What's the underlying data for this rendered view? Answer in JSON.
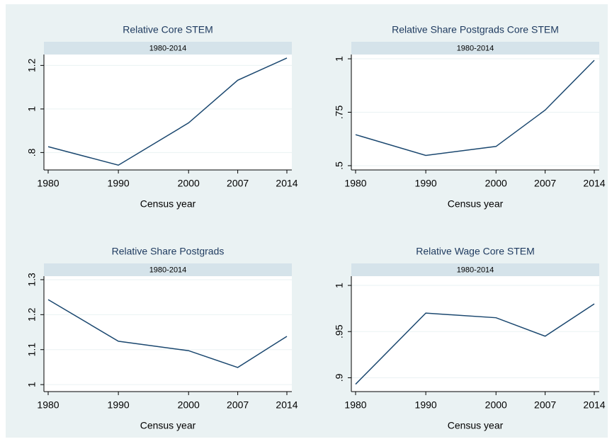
{
  "chart_data": [
    {
      "type": "line",
      "title": "Relative Core STEM",
      "subtitle": "1980-2014",
      "xlabel": "Census year",
      "x": [
        1980,
        1990,
        2000,
        2007,
        2014
      ],
      "values": [
        0.827,
        0.742,
        0.936,
        1.132,
        1.234
      ],
      "color": "#1a476f",
      "xlim": [
        1980,
        2014
      ],
      "xticks": [
        1980,
        1990,
        2000,
        2007,
        2014
      ],
      "ylim": [
        0.72,
        1.25
      ],
      "yticks": [
        {
          "value": 0.8,
          "label": ".8"
        },
        1,
        1.2
      ],
      "grid": true
    },
    {
      "type": "line",
      "title": "Relative Share Postgrads Core STEM",
      "subtitle": "1980-2014",
      "xlabel": "Census year",
      "x": [
        1980,
        1990,
        2000,
        2007,
        2014
      ],
      "values": [
        0.645,
        0.548,
        0.59,
        0.76,
        0.993
      ],
      "color": "#1a476f",
      "xlim": [
        1980,
        2014
      ],
      "xticks": [
        1980,
        1990,
        2000,
        2007,
        2014
      ],
      "ylim": [
        0.48,
        1.02
      ],
      "yticks": [
        {
          "value": 0.5,
          "label": ".5"
        },
        {
          "value": 0.75,
          "label": ".75"
        },
        1
      ],
      "grid": true
    },
    {
      "type": "line",
      "title": "Relative Share Postgrads",
      "subtitle": "1980-2014",
      "xlabel": "Census year",
      "x": [
        1980,
        1990,
        2000,
        2007,
        2014
      ],
      "values": [
        1.243,
        1.124,
        1.097,
        1.049,
        1.138
      ],
      "color": "#1a476f",
      "xlim": [
        1980,
        2014
      ],
      "xticks": [
        1980,
        1990,
        2000,
        2007,
        2014
      ],
      "ylim": [
        0.98,
        1.31
      ],
      "yticks": [
        1,
        1.1,
        1.2,
        1.3
      ],
      "grid": true
    },
    {
      "type": "line",
      "title": "Relative Wage Core STEM",
      "subtitle": "1980-2014",
      "xlabel": "Census year",
      "x": [
        1980,
        1990,
        2000,
        2007,
        2014
      ],
      "values": [
        0.893,
        0.97,
        0.965,
        0.945,
        0.98
      ],
      "color": "#1a476f",
      "xlim": [
        1980,
        2014
      ],
      "xticks": [
        1980,
        1990,
        2000,
        2007,
        2014
      ],
      "ylim": [
        0.885,
        1.01
      ],
      "yticks": [
        {
          "value": 0.9,
          "label": ".9"
        },
        {
          "value": 0.95,
          "label": ".95"
        },
        1
      ],
      "grid": true
    }
  ]
}
